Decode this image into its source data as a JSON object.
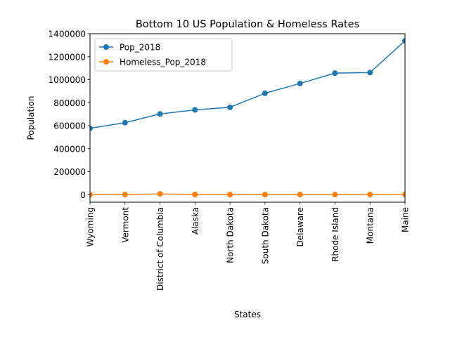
{
  "chart_data": {
    "type": "line",
    "title": "Bottom 10 US Population & Homeless Rates",
    "xlabel": "States",
    "ylabel": "Population",
    "categories": [
      "Wyoming",
      "Vermont",
      "District of Columbia",
      "Alaska",
      "North Dakota",
      "South Dakota",
      "Delaware",
      "Rhode Island",
      "Montana",
      "Maine"
    ],
    "ylim": [
      -65000,
      1400000
    ],
    "yticks": [
      0,
      200000,
      400000,
      600000,
      800000,
      1000000,
      1200000,
      1400000
    ],
    "ytick_labels": [
      "0",
      "200000",
      "400000",
      "600000",
      "800000",
      "1000000",
      "1200000",
      "1400000"
    ],
    "grid": false,
    "legend_position": "top-left",
    "series": [
      {
        "name": "Pop_2018",
        "color": "#1f77b4",
        "marker": "circle",
        "values": [
          577737,
          626299,
          702455,
          737438,
          760077,
          882235,
          967171,
          1057315,
          1062305,
          1338404
        ]
      },
      {
        "name": "Homeless_Pop_2018",
        "color": "#ff7f0e",
        "marker": "circle",
        "values": [
          639,
          1291,
          6904,
          2016,
          542,
          1159,
          1082,
          1101,
          1405,
          2516
        ]
      }
    ]
  }
}
